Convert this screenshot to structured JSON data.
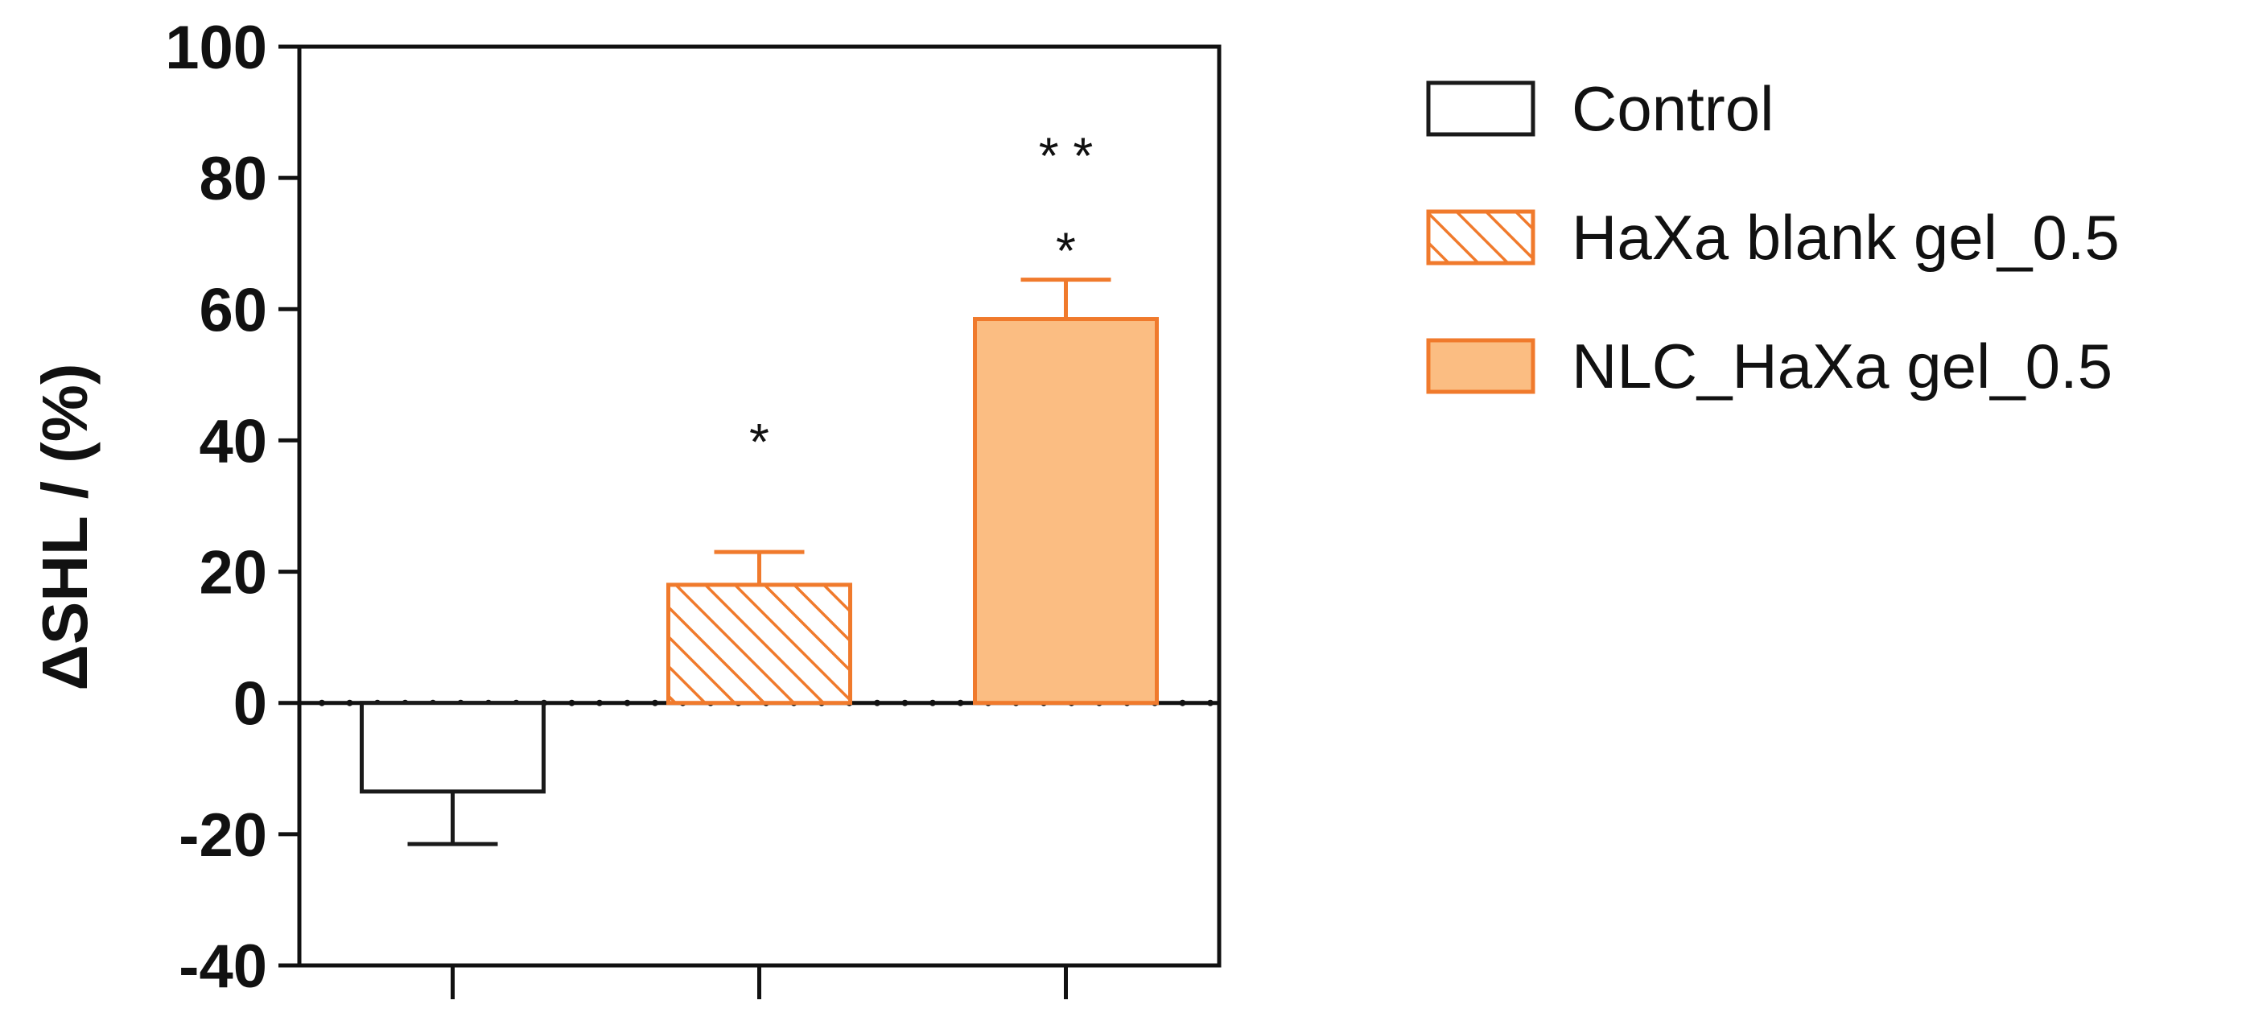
{
  "chart_data": {
    "type": "bar",
    "categories": [
      "Control",
      "HaXa blank gel_0.5",
      "NLC_HaXa gel_0.5"
    ],
    "values": [
      -13.5,
      18,
      58.5
    ],
    "errors": [
      8,
      5,
      6
    ],
    "ylabel": "ΔSHL / (%)",
    "ylim": [
      -40,
      100
    ],
    "yticks": [
      -40,
      -20,
      0,
      20,
      40,
      60,
      80,
      100
    ],
    "ytick_labels": [
      "-40",
      "-20",
      "0",
      "20",
      "40",
      "60",
      "80",
      "100"
    ],
    "significance": [
      {
        "category_index": 1,
        "rows": [
          "*"
        ]
      },
      {
        "category_index": 2,
        "rows": [
          "* *",
          "*"
        ]
      }
    ],
    "legend": {
      "placement": "right",
      "entries": [
        {
          "label": "Control",
          "style": "open"
        },
        {
          "label": "HaXa blank gel_0.5",
          "style": "hatched"
        },
        {
          "label": "NLC_HaXa gel_0.5",
          "style": "filled"
        }
      ]
    },
    "colors": {
      "control_edge": "#1a1a1a",
      "control_fill": "#ffffff",
      "orange_edge": "#f07a2c",
      "orange_fill": "#fbbd82",
      "axis": "#111111"
    },
    "grid": false
  }
}
